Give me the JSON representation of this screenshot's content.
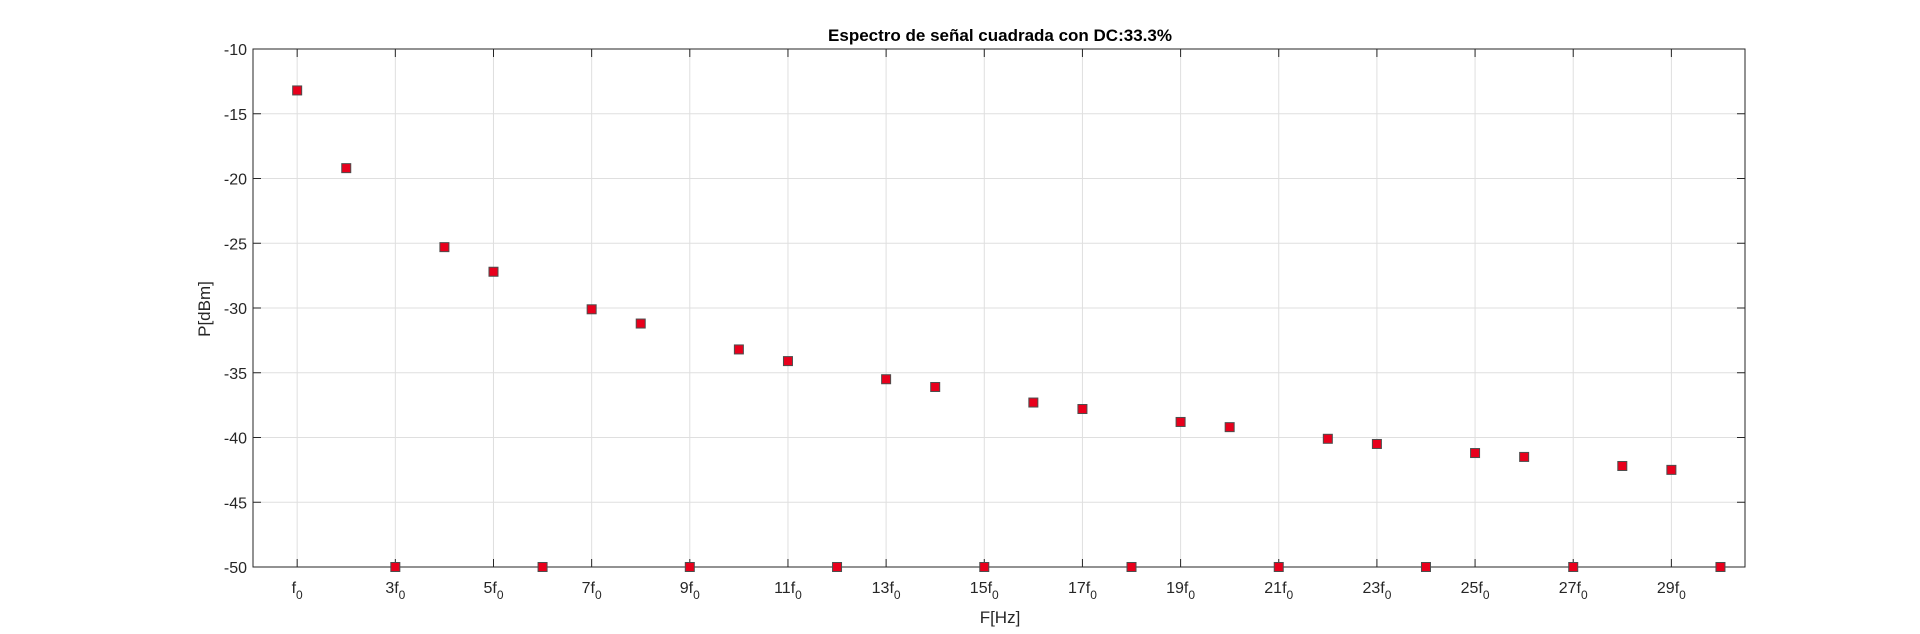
{
  "chart_data": {
    "type": "scatter",
    "title": "Espectro de señal cuadrada con DC:33.3%",
    "xlabel": "F[Hz]",
    "ylabel": "P[dBm]",
    "xlim": [
      0.1,
      30.5
    ],
    "ylim": [
      -50,
      -10
    ],
    "grid": true,
    "marker": "square",
    "marker_color": "#e8001c",
    "marker_edge": "#4d4d4d",
    "xticks": [
      1,
      3,
      5,
      7,
      9,
      11,
      13,
      15,
      17,
      19,
      21,
      23,
      25,
      27,
      29
    ],
    "xtick_labels": [
      {
        "base": "f",
        "prefix": "",
        "sub": "0"
      },
      {
        "base": "f",
        "prefix": "3",
        "sub": "0"
      },
      {
        "base": "f",
        "prefix": "5",
        "sub": "0"
      },
      {
        "base": "f",
        "prefix": "7",
        "sub": "0"
      },
      {
        "base": "f",
        "prefix": "9",
        "sub": "0"
      },
      {
        "base": "f",
        "prefix": "11",
        "sub": "0"
      },
      {
        "base": "f",
        "prefix": "13",
        "sub": "0"
      },
      {
        "base": "f",
        "prefix": "15",
        "sub": "0"
      },
      {
        "base": "f",
        "prefix": "17",
        "sub": "0"
      },
      {
        "base": "f",
        "prefix": "19",
        "sub": "0"
      },
      {
        "base": "f",
        "prefix": "21",
        "sub": "0"
      },
      {
        "base": "f",
        "prefix": "23",
        "sub": "0"
      },
      {
        "base": "f",
        "prefix": "25",
        "sub": "0"
      },
      {
        "base": "f",
        "prefix": "27",
        "sub": "0"
      },
      {
        "base": "f",
        "prefix": "29",
        "sub": "0"
      }
    ],
    "yticks": [
      -10,
      -15,
      -20,
      -25,
      -30,
      -35,
      -40,
      -45,
      -50
    ],
    "ytick_labels": [
      "-10",
      "-15",
      "-20",
      "-25",
      "-30",
      "-35",
      "-40",
      "-45",
      "-50"
    ],
    "x": [
      1,
      2,
      3,
      4,
      5,
      6,
      7,
      8,
      9,
      10,
      11,
      12,
      13,
      14,
      15,
      16,
      17,
      18,
      19,
      20,
      21,
      22,
      23,
      24,
      25,
      26,
      27,
      28,
      29,
      30
    ],
    "y": [
      -13.2,
      -19.2,
      -50,
      -25.3,
      -27.2,
      -50,
      -30.1,
      -31.2,
      -50,
      -33.2,
      -34.1,
      -50,
      -35.5,
      -36.1,
      -50,
      -37.3,
      -37.8,
      -50,
      -38.8,
      -39.2,
      -50,
      -40.1,
      -40.5,
      -50,
      -41.2,
      -41.5,
      -50,
      -42.2,
      -42.5,
      -50
    ]
  }
}
